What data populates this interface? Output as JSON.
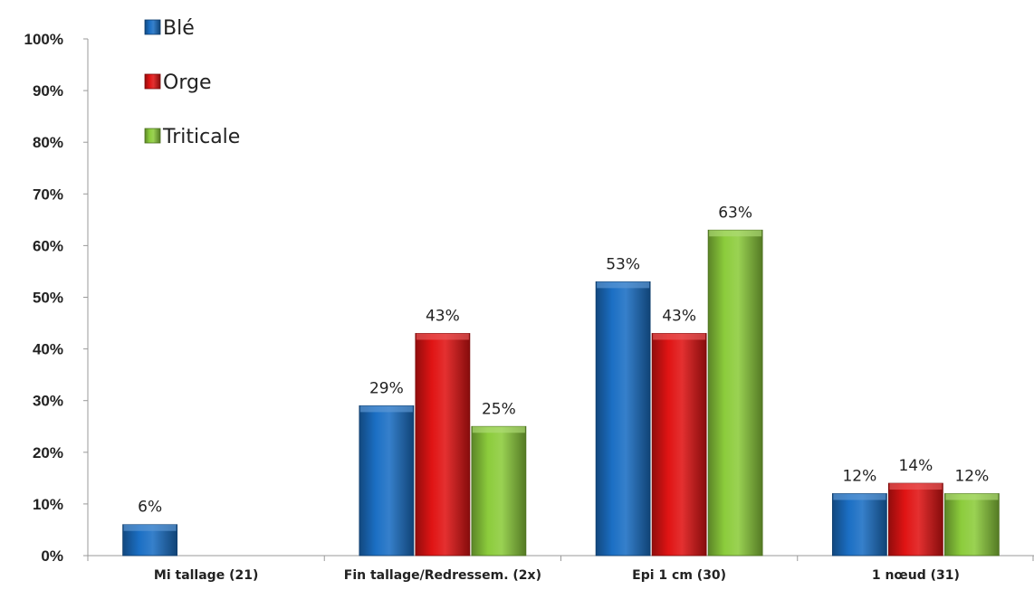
{
  "chart_data": {
    "type": "bar",
    "title": "",
    "xlabel": "",
    "ylabel": "",
    "ylim": [
      0,
      100
    ],
    "y_unit": "%",
    "y_ticks": [
      "0%",
      "10%",
      "20%",
      "30%",
      "40%",
      "50%",
      "60%",
      "70%",
      "80%",
      "90%",
      "100%"
    ],
    "categories": [
      "Mi tallage (21)",
      "Fin tallage/Redressem. (2x)",
      "Epi 1 cm (30)",
      "1 nœud (31)"
    ],
    "series": [
      {
        "name": "Blé",
        "color": "#1b6fc4",
        "values": [
          6,
          29,
          53,
          12
        ],
        "labels": [
          "6%",
          "29%",
          "53%",
          "12%"
        ]
      },
      {
        "name": "Orge",
        "color": "#e01414",
        "values": [
          null,
          43,
          43,
          14
        ],
        "labels": [
          "",
          "43%",
          "43%",
          "14%"
        ]
      },
      {
        "name": "Triticale",
        "color": "#8ccc3c",
        "values": [
          null,
          25,
          63,
          12
        ],
        "labels": [
          "",
          "25%",
          "63%",
          "12%"
        ]
      }
    ],
    "legend_position": "top-left",
    "grid": false
  }
}
